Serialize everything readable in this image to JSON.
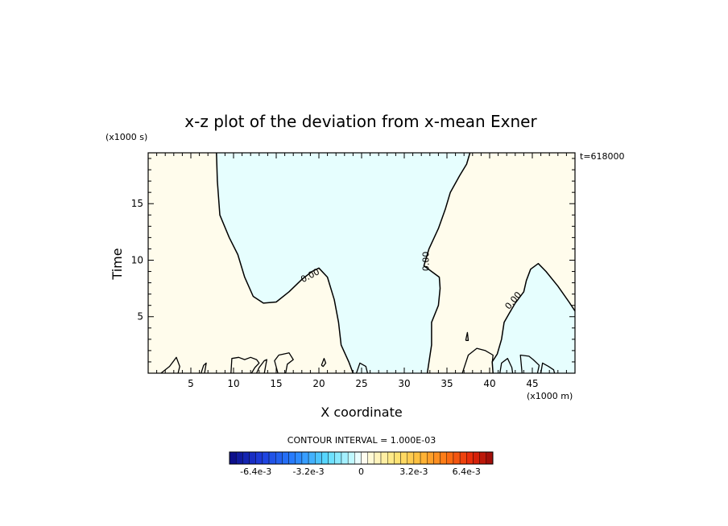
{
  "chart_data": {
    "type": "heatmap",
    "title": "x-z plot of the deviation from x-mean Exner",
    "xlabel": "X coordinate",
    "ylabel": "Time",
    "x_unit": "(x1000 m)",
    "y_unit": "(x1000 s)",
    "time_label": "t=618000",
    "xlim": [
      0,
      50
    ],
    "ylim": [
      0,
      19.5
    ],
    "x_ticks": [
      "5",
      "10",
      "15",
      "20",
      "25",
      "30",
      "35",
      "40",
      "45"
    ],
    "y_ticks": [
      "5",
      "10",
      "15"
    ],
    "contour_labels": [
      "0.00",
      "0.00",
      "0.00"
    ],
    "contour_interval_label": "CONTOUR INTERVAL = 1.000E-03",
    "colorbar_ticks": [
      "-6.4e-3",
      "-3.2e-3",
      "0",
      "3.2e-3",
      "6.4e-3"
    ],
    "colorbar_range": [
      -0.008,
      0.008
    ],
    "colorbar_levels": 40,
    "regions": [
      {
        "sign": "positive",
        "color": "#fffcec"
      },
      {
        "sign": "negative",
        "color": "#e6fefe"
      }
    ],
    "zero_contour": {
      "main_left": [
        [
          8,
          19.5
        ],
        [
          8.1,
          17
        ],
        [
          8.4,
          14
        ],
        [
          9.5,
          12
        ],
        [
          10.5,
          10.5
        ],
        [
          11.3,
          8.5
        ],
        [
          12.3,
          6.8
        ],
        [
          13.5,
          6.2
        ],
        [
          15,
          6.3
        ],
        [
          16.5,
          7.2
        ],
        [
          18,
          8.3
        ],
        [
          19.2,
          9.0
        ],
        [
          20,
          9.3
        ],
        [
          21,
          8.5
        ],
        [
          21.8,
          6.5
        ],
        [
          22.3,
          4.5
        ],
        [
          22.6,
          2.5
        ],
        [
          23.5,
          1.0
        ],
        [
          24,
          0
        ]
      ],
      "main_right": [
        [
          32.7,
          0
        ],
        [
          33.2,
          2.5
        ],
        [
          33.2,
          4.5
        ],
        [
          34,
          6
        ],
        [
          34.2,
          7.5
        ],
        [
          34.1,
          8.5
        ],
        [
          32.3,
          9.5
        ],
        [
          32.9,
          11
        ],
        [
          34,
          12.8
        ],
        [
          34.8,
          14.5
        ],
        [
          35.4,
          16
        ],
        [
          36.5,
          17.5
        ],
        [
          37.3,
          18.5
        ],
        [
          37.7,
          19.5
        ]
      ],
      "right_blob": [
        [
          40.4,
          0
        ],
        [
          40.3,
          1.0
        ],
        [
          40.9,
          1.7
        ],
        [
          41.4,
          3
        ],
        [
          41.7,
          4.5
        ],
        [
          42.3,
          5.3
        ],
        [
          43,
          6.2
        ],
        [
          44,
          7.2
        ],
        [
          44.3,
          8.2
        ],
        [
          44.8,
          9.2
        ],
        [
          45.7,
          9.7
        ],
        [
          46.6,
          9.0
        ],
        [
          48,
          7.7
        ],
        [
          49.3,
          6.3
        ],
        [
          50,
          5.5
        ]
      ]
    }
  },
  "colors": {
    "positive_fill": "#fffcec",
    "negative_fill": "#e6fefe",
    "contour": "#000000"
  }
}
